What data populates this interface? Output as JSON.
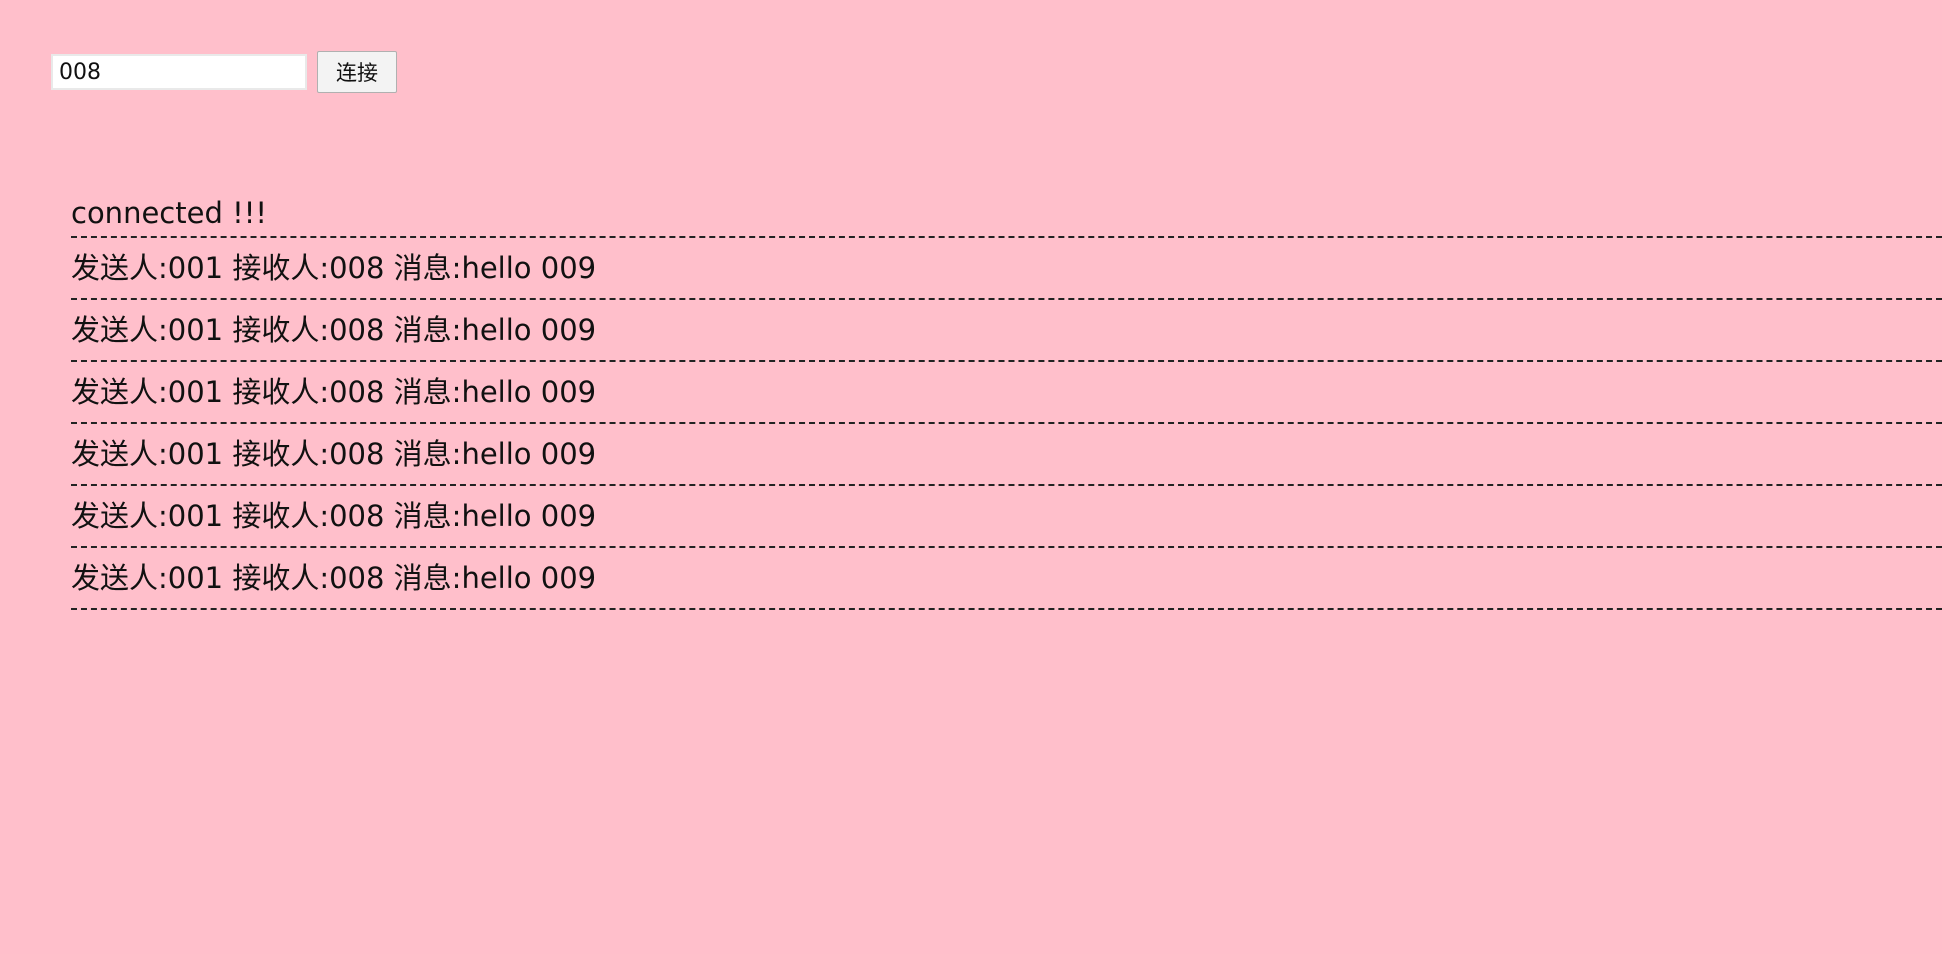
{
  "toolbar": {
    "input_value": "008",
    "connect_label": "连接"
  },
  "log": {
    "status": "connected !!!",
    "messages": [
      "发送人:001 接收人:008 消息:hello 009",
      "发送人:001 接收人:008 消息:hello 009",
      "发送人:001 接收人:008 消息:hello 009",
      "发送人:001 接收人:008 消息:hello 009",
      "发送人:001 接收人:008 消息:hello 009",
      "发送人:001 接收人:008 消息:hello 009"
    ]
  },
  "colors": {
    "background": "#ffbfcb",
    "divider": "#222222"
  }
}
